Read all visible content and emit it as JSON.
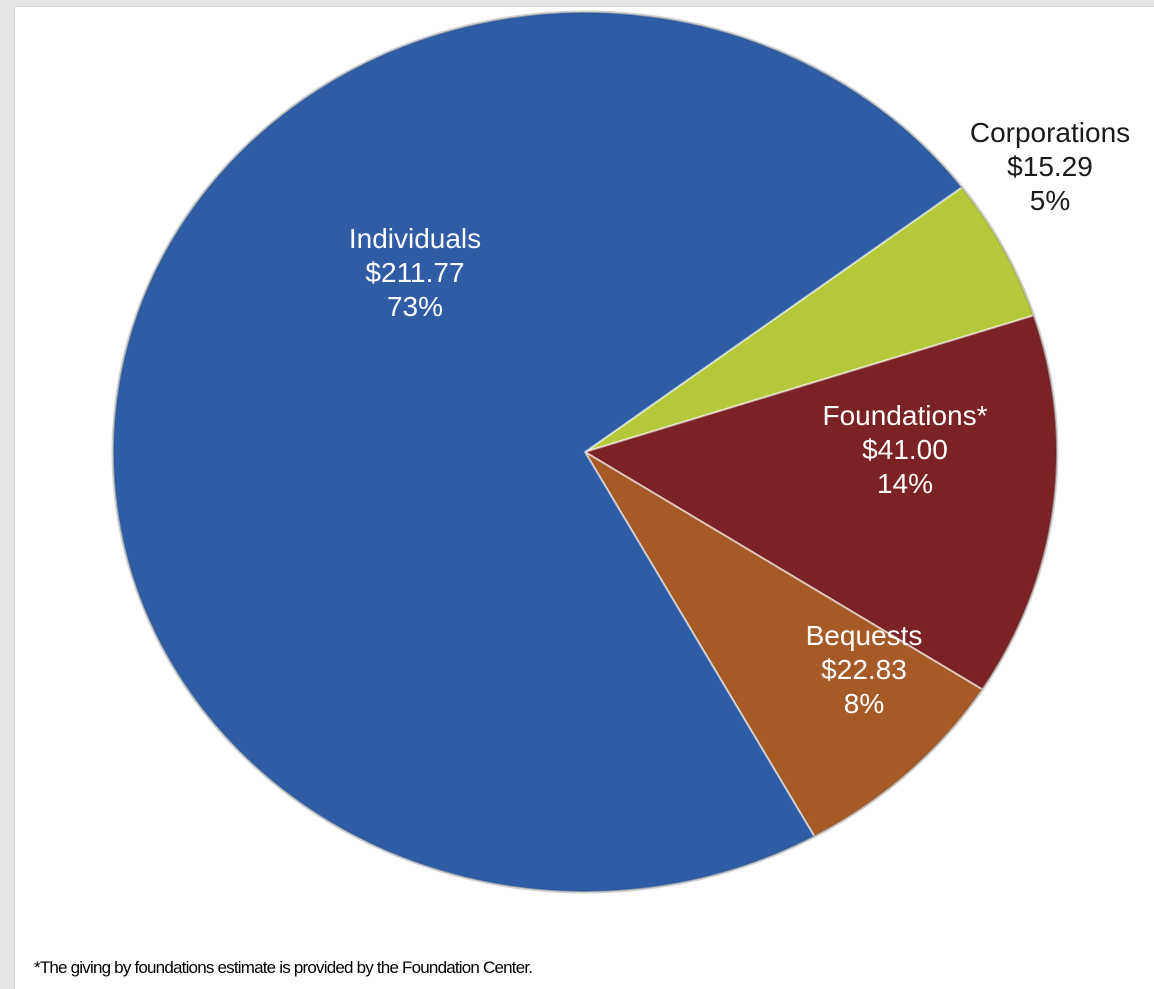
{
  "chart_data": {
    "type": "pie",
    "title": "",
    "slices": [
      {
        "label": "Individuals",
        "amount": "$211.77",
        "percent": "73%",
        "value": 211.77,
        "color": "#2e5da6",
        "label_color": "#ffffff"
      },
      {
        "label": "Corporations",
        "amount": "$15.29",
        "percent": "5%",
        "value": 15.29,
        "color": "#b5c93a",
        "label_color": "#1a1a1a"
      },
      {
        "label": "Foundations*",
        "amount": "$41.00",
        "percent": "14%",
        "value": 41.0,
        "color": "#7b2226",
        "label_color": "#ffffff"
      },
      {
        "label": "Bequests",
        "amount": "$22.83",
        "percent": "8%",
        "value": 22.83,
        "color": "#a65a26",
        "label_color": "#ffffff"
      }
    ],
    "footnote": "*The giving by foundations estimate is provided by the Foundation Center."
  }
}
